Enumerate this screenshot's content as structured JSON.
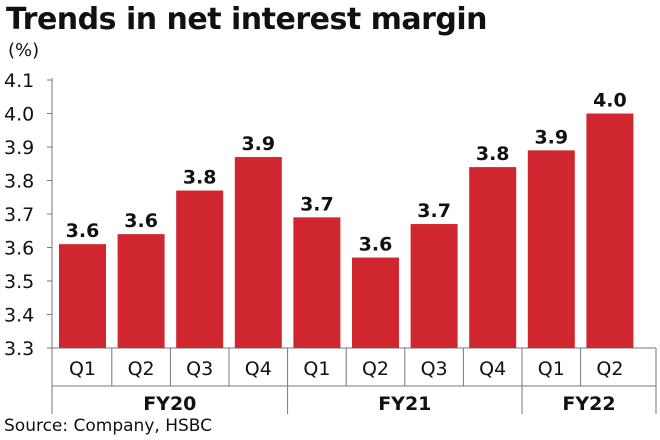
{
  "chart_data": {
    "type": "bar",
    "title": "Trends in net interest margin",
    "unit_label": "(%)",
    "categories": [
      "Q1",
      "Q2",
      "Q3",
      "Q4",
      "Q1",
      "Q2",
      "Q3",
      "Q4",
      "Q1",
      "Q2"
    ],
    "groups": [
      {
        "name": "FY20",
        "count": 4
      },
      {
        "name": "FY21",
        "count": 4
      },
      {
        "name": "FY22",
        "count": 2
      }
    ],
    "values": [
      3.61,
      3.64,
      3.77,
      3.87,
      3.69,
      3.57,
      3.67,
      3.84,
      3.89,
      4.0
    ],
    "data_labels": [
      "3.6",
      "3.6",
      "3.8",
      "3.9",
      "3.7",
      "3.6",
      "3.7",
      "3.8",
      "3.9",
      "4.0"
    ],
    "ylim": [
      3.3,
      4.1
    ],
    "yticks": [
      "3.3",
      "3.4",
      "3.5",
      "3.6",
      "3.7",
      "3.8",
      "3.9",
      "4.0",
      "4.1"
    ],
    "grid": false,
    "legend": "none",
    "bar_color": "#d0262f",
    "source": "Source: Company, HSBC"
  }
}
